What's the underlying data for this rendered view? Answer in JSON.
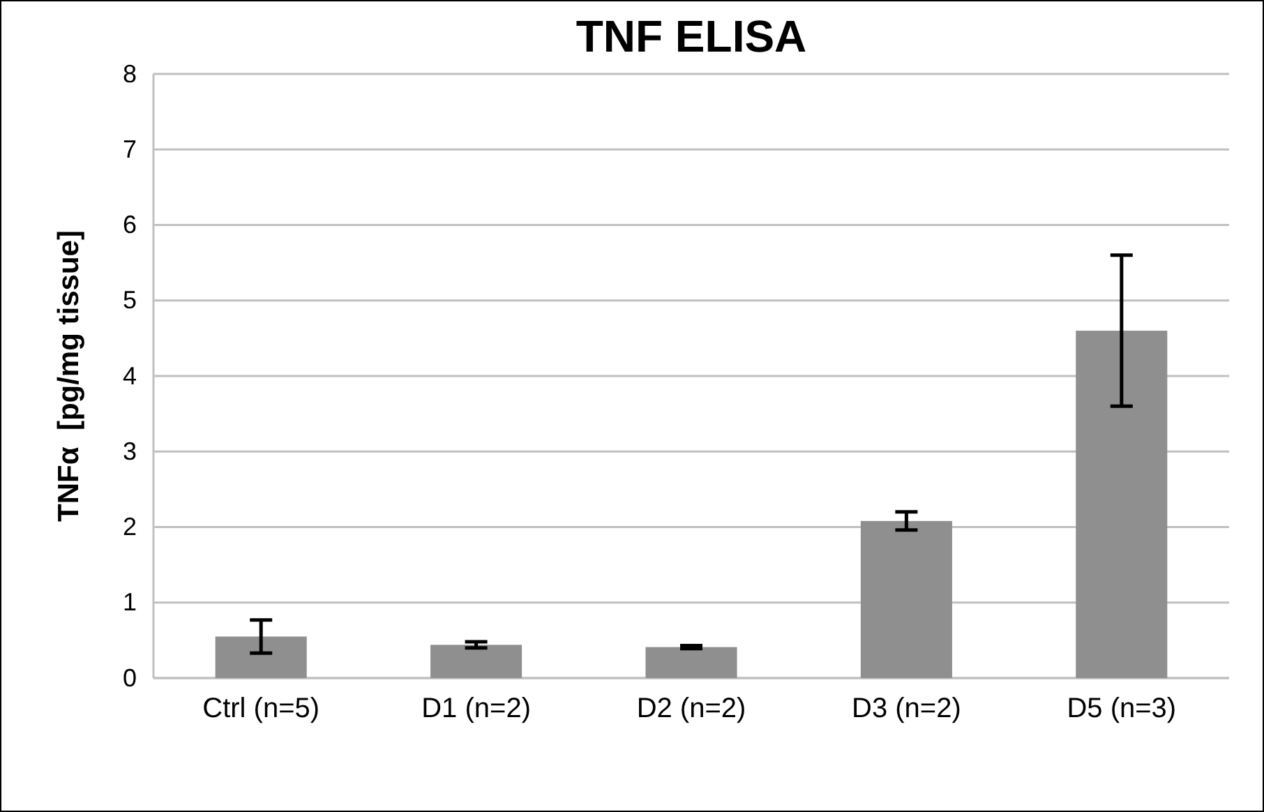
{
  "chart_data": {
    "type": "bar",
    "title": "TNF ELISA",
    "ylabel": "TNFα  [pg/mg tissue]",
    "categories": [
      "Ctrl (n=5)",
      "D1 (n=2)",
      "D2 (n=2)",
      "D3 (n=2)",
      "D5 (n=3)"
    ],
    "values": [
      0.55,
      0.44,
      0.41,
      2.08,
      4.6
    ],
    "errors": [
      0.22,
      0.04,
      0.02,
      0.12,
      1.0
    ],
    "color": "#8f8f8f",
    "ylim": [
      0,
      8
    ],
    "yticks": [
      0,
      1,
      2,
      3,
      4,
      5,
      6,
      7,
      8
    ],
    "grid": "y"
  }
}
